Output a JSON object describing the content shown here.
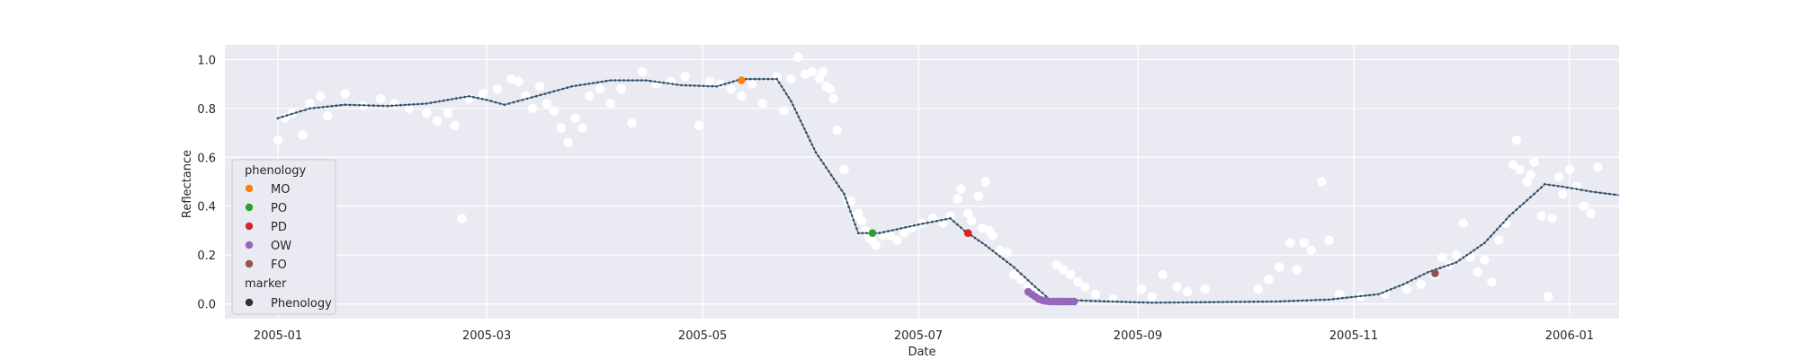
{
  "chart_data": {
    "type": "line",
    "xlabel": "Date",
    "ylabel": "Reflectance",
    "xlim": [
      "2004-12-17",
      "2006-01-15"
    ],
    "ylim": [
      -0.06,
      1.06
    ],
    "x_ticks": [
      "2005-01",
      "2005-03",
      "2005-05",
      "2005-07",
      "2005-09",
      "2005-11",
      "2006-01"
    ],
    "y_ticks": [
      "0.0",
      "0.2",
      "0.4",
      "0.6",
      "0.8",
      "1.0"
    ],
    "grid": true,
    "background": "#eaeaf2",
    "colors": {
      "observations": "#ffffff",
      "smoothed": "#4c6e8a",
      "MO": "#ff7f0e",
      "PO": "#2ca02c",
      "PD": "#d62728",
      "OW": "#9467bd",
      "FO": "#8c564b",
      "marker": "#333333"
    },
    "legend": {
      "placement": "lower-left",
      "hue_title": "phenology",
      "hue_entries": [
        "MO",
        "PO",
        "PD",
        "OW",
        "FO"
      ],
      "style_title": "marker",
      "style_entries": [
        "Phenology"
      ]
    },
    "smoothed_curve": [
      [
        "2005-01-01",
        0.76
      ],
      [
        "2005-01-10",
        0.8
      ],
      [
        "2005-01-20",
        0.815
      ],
      [
        "2005-02-01",
        0.81
      ],
      [
        "2005-02-12",
        0.82
      ],
      [
        "2005-02-24",
        0.85
      ],
      [
        "2005-03-01",
        0.835
      ],
      [
        "2005-03-06",
        0.815
      ],
      [
        "2005-03-15",
        0.85
      ],
      [
        "2005-03-25",
        0.89
      ],
      [
        "2005-04-05",
        0.915
      ],
      [
        "2005-04-15",
        0.915
      ],
      [
        "2005-04-25",
        0.895
      ],
      [
        "2005-05-05",
        0.89
      ],
      [
        "2005-05-12",
        0.92
      ],
      [
        "2005-05-22",
        0.92
      ],
      [
        "2005-05-26",
        0.83
      ],
      [
        "2005-06-02",
        0.62
      ],
      [
        "2005-06-10",
        0.45
      ],
      [
        "2005-06-14",
        0.29
      ],
      [
        "2005-06-20",
        0.29
      ],
      [
        "2005-07-01",
        0.325
      ],
      [
        "2005-07-10",
        0.35
      ],
      [
        "2005-07-14",
        0.3
      ],
      [
        "2005-07-20",
        0.24
      ],
      [
        "2005-07-28",
        0.15
      ],
      [
        "2005-08-03",
        0.07
      ],
      [
        "2005-08-07",
        0.02
      ],
      [
        "2005-08-20",
        0.012
      ],
      [
        "2005-09-05",
        0.005
      ],
      [
        "2005-09-25",
        0.008
      ],
      [
        "2005-10-10",
        0.01
      ],
      [
        "2005-10-25",
        0.018
      ],
      [
        "2005-11-08",
        0.04
      ],
      [
        "2005-11-15",
        0.08
      ],
      [
        "2005-11-22",
        0.13
      ],
      [
        "2005-11-30",
        0.17
      ],
      [
        "2005-12-08",
        0.25
      ],
      [
        "2005-12-15",
        0.36
      ],
      [
        "2005-12-22",
        0.45
      ],
      [
        "2005-12-25",
        0.49
      ],
      [
        "2005-12-30",
        0.48
      ],
      [
        "2006-01-07",
        0.46
      ],
      [
        "2006-01-15",
        0.445
      ]
    ],
    "observations": [
      [
        "2005-01-01",
        0.67
      ],
      [
        "2005-01-03",
        0.76
      ],
      [
        "2005-01-05",
        0.78
      ],
      [
        "2005-01-08",
        0.69
      ],
      [
        "2005-01-10",
        0.82
      ],
      [
        "2005-01-13",
        0.85
      ],
      [
        "2005-01-15",
        0.77
      ],
      [
        "2005-01-20",
        0.86
      ],
      [
        "2005-01-25",
        0.81
      ],
      [
        "2005-01-30",
        0.84
      ],
      [
        "2005-02-03",
        0.82
      ],
      [
        "2005-02-07",
        0.8
      ],
      [
        "2005-02-12",
        0.78
      ],
      [
        "2005-02-15",
        0.75
      ],
      [
        "2005-02-18",
        0.78
      ],
      [
        "2005-02-20",
        0.73
      ],
      [
        "2005-02-22",
        0.35
      ],
      [
        "2005-02-24",
        0.84
      ],
      [
        "2005-02-28",
        0.86
      ],
      [
        "2005-03-04",
        0.88
      ],
      [
        "2005-03-08",
        0.92
      ],
      [
        "2005-03-10",
        0.91
      ],
      [
        "2005-03-12",
        0.85
      ],
      [
        "2005-03-14",
        0.8
      ],
      [
        "2005-03-16",
        0.89
      ],
      [
        "2005-03-18",
        0.82
      ],
      [
        "2005-03-20",
        0.79
      ],
      [
        "2005-03-22",
        0.72
      ],
      [
        "2005-03-24",
        0.66
      ],
      [
        "2005-03-26",
        0.76
      ],
      [
        "2005-03-28",
        0.72
      ],
      [
        "2005-03-30",
        0.85
      ],
      [
        "2005-04-02",
        0.88
      ],
      [
        "2005-04-05",
        0.82
      ],
      [
        "2005-04-08",
        0.88
      ],
      [
        "2005-04-11",
        0.74
      ],
      [
        "2005-04-14",
        0.95
      ],
      [
        "2005-04-18",
        0.9
      ],
      [
        "2005-04-22",
        0.91
      ],
      [
        "2005-04-26",
        0.93
      ],
      [
        "2005-04-30",
        0.73
      ],
      [
        "2005-05-03",
        0.91
      ],
      [
        "2005-05-06",
        0.9
      ],
      [
        "2005-05-09",
        0.88
      ],
      [
        "2005-05-12",
        0.85
      ],
      [
        "2005-05-15",
        0.9
      ],
      [
        "2005-05-18",
        0.82
      ],
      [
        "2005-05-22",
        0.93
      ],
      [
        "2005-05-24",
        0.79
      ],
      [
        "2005-05-26",
        0.92
      ],
      [
        "2005-05-28",
        1.01
      ],
      [
        "2005-05-30",
        0.94
      ],
      [
        "2005-06-01",
        0.95
      ],
      [
        "2005-06-03",
        0.92
      ],
      [
        "2005-06-04",
        0.95
      ],
      [
        "2005-06-05",
        0.89
      ],
      [
        "2005-06-06",
        0.88
      ],
      [
        "2005-06-07",
        0.84
      ],
      [
        "2005-06-08",
        0.71
      ],
      [
        "2005-06-10",
        0.55
      ],
      [
        "2005-06-11",
        0.42
      ],
      [
        "2005-06-12",
        0.42
      ],
      [
        "2005-06-13",
        0.36
      ],
      [
        "2005-06-14",
        0.37
      ],
      [
        "2005-06-15",
        0.34
      ],
      [
        "2005-06-16",
        0.3
      ],
      [
        "2005-06-17",
        0.27
      ],
      [
        "2005-06-18",
        0.26
      ],
      [
        "2005-06-19",
        0.24
      ],
      [
        "2005-06-21",
        0.28
      ],
      [
        "2005-06-23",
        0.28
      ],
      [
        "2005-06-25",
        0.26
      ],
      [
        "2005-06-27",
        0.29
      ],
      [
        "2005-06-29",
        0.31
      ],
      [
        "2005-07-02",
        0.33
      ],
      [
        "2005-07-05",
        0.35
      ],
      [
        "2005-07-08",
        0.33
      ],
      [
        "2005-07-10",
        0.36
      ],
      [
        "2005-07-12",
        0.43
      ],
      [
        "2005-07-13",
        0.47
      ],
      [
        "2005-07-15",
        0.37
      ],
      [
        "2005-07-16",
        0.34
      ],
      [
        "2005-07-18",
        0.44
      ],
      [
        "2005-07-19",
        0.31
      ],
      [
        "2005-07-20",
        0.5
      ],
      [
        "2005-07-21",
        0.3
      ],
      [
        "2005-07-22",
        0.28
      ],
      [
        "2005-07-24",
        0.22
      ],
      [
        "2005-07-26",
        0.21
      ],
      [
        "2005-07-28",
        0.12
      ],
      [
        "2005-07-30",
        0.1
      ],
      [
        "2005-08-01",
        0.07
      ],
      [
        "2005-08-03",
        0.05
      ],
      [
        "2005-08-05",
        0.03
      ],
      [
        "2005-08-07",
        0.01
      ],
      [
        "2005-08-09",
        0.16
      ],
      [
        "2005-08-11",
        0.14
      ],
      [
        "2005-08-13",
        0.12
      ],
      [
        "2005-08-15",
        0.09
      ],
      [
        "2005-08-17",
        0.07
      ],
      [
        "2005-08-20",
        0.04
      ],
      [
        "2005-08-25",
        0.02
      ],
      [
        "2005-09-02",
        0.06
      ],
      [
        "2005-09-05",
        0.03
      ],
      [
        "2005-09-08",
        0.12
      ],
      [
        "2005-09-12",
        0.07
      ],
      [
        "2005-09-15",
        0.05
      ],
      [
        "2005-09-20",
        0.06
      ],
      [
        "2005-10-05",
        0.06
      ],
      [
        "2005-10-08",
        0.1
      ],
      [
        "2005-10-11",
        0.15
      ],
      [
        "2005-10-14",
        0.25
      ],
      [
        "2005-10-16",
        0.14
      ],
      [
        "2005-10-18",
        0.25
      ],
      [
        "2005-10-20",
        0.22
      ],
      [
        "2005-10-23",
        0.5
      ],
      [
        "2005-10-25",
        0.26
      ],
      [
        "2005-10-28",
        0.04
      ],
      [
        "2005-11-03",
        0.03
      ],
      [
        "2005-11-10",
        0.04
      ],
      [
        "2005-11-16",
        0.06
      ],
      [
        "2005-11-20",
        0.08
      ],
      [
        "2005-11-24",
        0.12
      ],
      [
        "2005-11-26",
        0.19
      ],
      [
        "2005-11-28",
        0.16
      ],
      [
        "2005-11-30",
        0.2
      ],
      [
        "2005-12-02",
        0.33
      ],
      [
        "2005-12-04",
        0.19
      ],
      [
        "2005-12-06",
        0.13
      ],
      [
        "2005-12-08",
        0.18
      ],
      [
        "2005-12-10",
        0.09
      ],
      [
        "2005-12-12",
        0.26
      ],
      [
        "2005-12-14",
        0.33
      ],
      [
        "2005-12-16",
        0.57
      ],
      [
        "2005-12-17",
        0.67
      ],
      [
        "2005-12-18",
        0.55
      ],
      [
        "2005-12-20",
        0.5
      ],
      [
        "2005-12-21",
        0.53
      ],
      [
        "2005-12-22",
        0.58
      ],
      [
        "2005-12-24",
        0.36
      ],
      [
        "2005-12-26",
        0.03
      ],
      [
        "2005-12-27",
        0.35
      ],
      [
        "2005-12-29",
        0.52
      ],
      [
        "2005-12-30",
        0.45
      ],
      [
        "2006-01-01",
        0.55
      ],
      [
        "2006-01-03",
        0.48
      ],
      [
        "2006-01-05",
        0.4
      ],
      [
        "2006-01-07",
        0.37
      ],
      [
        "2006-01-09",
        0.56
      ]
    ],
    "phenology_points": [
      {
        "label": "MO",
        "x": "2005-05-12",
        "y": 0.915
      },
      {
        "label": "PO",
        "x": "2005-06-18",
        "y": 0.29
      },
      {
        "label": "PD",
        "x": "2005-07-15",
        "y": 0.29
      },
      {
        "label": "OW",
        "x": [
          "2005-08-01",
          "2005-08-02",
          "2005-08-03",
          "2005-08-04",
          "2005-08-05",
          "2005-08-06",
          "2005-08-07",
          "2005-08-08",
          "2005-08-09",
          "2005-08-10",
          "2005-08-11",
          "2005-08-12",
          "2005-08-13",
          "2005-08-14"
        ],
        "y": [
          0.05,
          0.04,
          0.03,
          0.02,
          0.015,
          0.012,
          0.01,
          0.01,
          0.01,
          0.01,
          0.01,
          0.01,
          0.01,
          0.01
        ]
      },
      {
        "label": "FO",
        "x": "2005-11-24",
        "y": 0.125
      }
    ]
  }
}
